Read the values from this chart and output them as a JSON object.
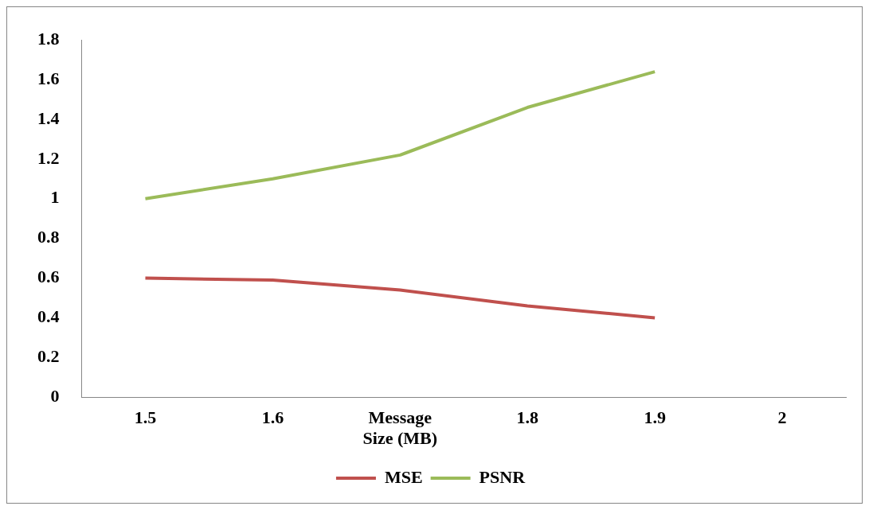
{
  "chart_data": {
    "type": "line",
    "categories": [
      "1.5",
      "1.6",
      "Message Size (MB)",
      "1.8",
      "1.9",
      "2"
    ],
    "series": [
      {
        "name": "MSE",
        "color": "#c0504d",
        "values": [
          0.6,
          0.59,
          0.54,
          0.46,
          0.4,
          null
        ]
      },
      {
        "name": "PSNR",
        "color": "#9bbb59",
        "values": [
          1.0,
          1.1,
          1.22,
          1.46,
          1.64,
          null
        ]
      }
    ],
    "ylim": [
      0,
      1.8
    ],
    "yticks": [
      0,
      0.2,
      0.4,
      0.6,
      0.8,
      1,
      1.2,
      1.4,
      1.6,
      1.8
    ],
    "grid": false,
    "legend": "bottom",
    "marker": "none",
    "line_style": "solid"
  }
}
